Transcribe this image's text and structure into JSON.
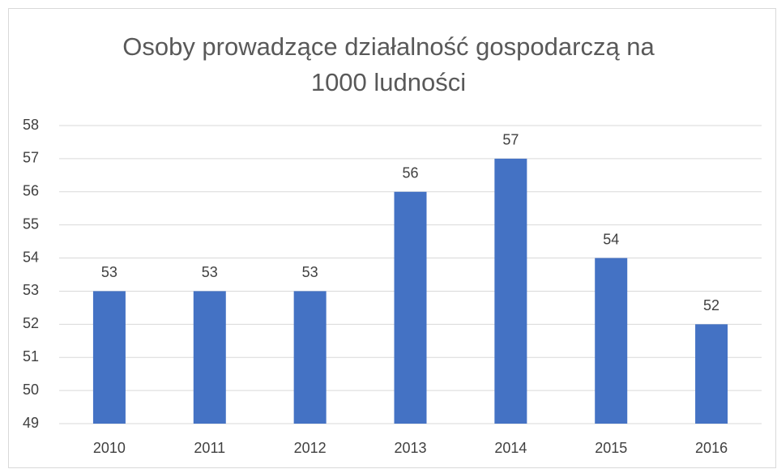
{
  "chart_data": {
    "type": "bar",
    "title": "Osoby prowadzące działalność gospodarczą na 1000 ludności",
    "categories": [
      "2010",
      "2011",
      "2012",
      "2013",
      "2014",
      "2015",
      "2016"
    ],
    "values": [
      53,
      53,
      53,
      56,
      57,
      54,
      52
    ],
    "color": "#4472c4",
    "ylim": [
      49,
      58
    ],
    "yticks": [
      49,
      50,
      51,
      52,
      53,
      54,
      55,
      56,
      57,
      58
    ],
    "grid": true,
    "data_labels": true
  }
}
